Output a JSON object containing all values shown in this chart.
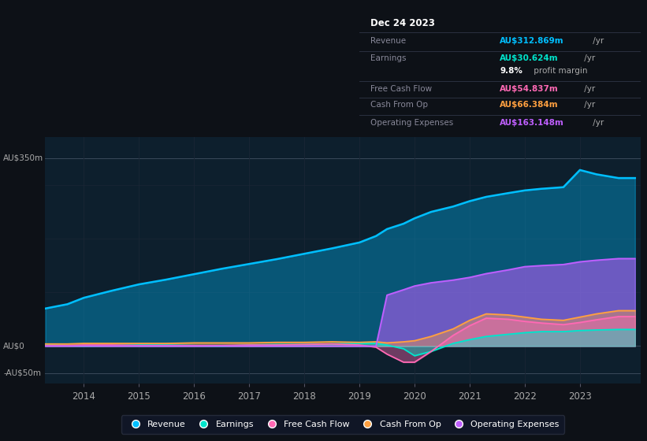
{
  "bg_color": "#0d1117",
  "plot_bg_color": "#0d1f2d",
  "title": "Dec 24 2023",
  "ylabel_top": "AU$350m",
  "ylabel_zero": "AU$0",
  "ylabel_bottom": "-AU$50m",
  "years": [
    2013.3,
    2013.7,
    2014.0,
    2014.5,
    2015.0,
    2015.5,
    2016.0,
    2016.5,
    2017.0,
    2017.5,
    2018.0,
    2018.5,
    2019.0,
    2019.3,
    2019.5,
    2019.8,
    2020.0,
    2020.3,
    2020.7,
    2021.0,
    2021.3,
    2021.7,
    2022.0,
    2022.3,
    2022.7,
    2023.0,
    2023.3,
    2023.7,
    2024.0
  ],
  "revenue": [
    70,
    78,
    90,
    103,
    115,
    124,
    134,
    144,
    153,
    162,
    172,
    182,
    193,
    205,
    218,
    228,
    238,
    250,
    260,
    270,
    278,
    285,
    290,
    293,
    296,
    328,
    320,
    313,
    313
  ],
  "earnings": [
    2,
    1,
    0,
    1,
    2,
    2,
    1,
    0,
    2,
    3,
    3,
    4,
    5,
    5,
    2,
    -5,
    -18,
    -10,
    5,
    12,
    18,
    22,
    25,
    27,
    27,
    29,
    30,
    31,
    31
  ],
  "free_cash_flow": [
    1,
    1,
    2,
    2,
    1,
    1,
    1,
    1,
    2,
    2,
    3,
    4,
    2,
    -2,
    -15,
    -30,
    -30,
    -10,
    20,
    38,
    52,
    50,
    46,
    43,
    40,
    44,
    49,
    55,
    55
  ],
  "cash_from_op": [
    4,
    4,
    5,
    5,
    5,
    5,
    6,
    6,
    6,
    7,
    7,
    8,
    7,
    8,
    6,
    8,
    10,
    18,
    32,
    48,
    60,
    58,
    54,
    50,
    48,
    54,
    60,
    66,
    66
  ],
  "operating_expenses": [
    0,
    0,
    0,
    0,
    0,
    0,
    0,
    0,
    0,
    0,
    0,
    0,
    0,
    0,
    95,
    105,
    112,
    118,
    123,
    128,
    135,
    142,
    148,
    150,
    152,
    157,
    160,
    163,
    163
  ],
  "revenue_color": "#00bfff",
  "earnings_color": "#00e5cc",
  "free_cash_flow_color": "#ff69b4",
  "cash_from_op_color": "#ffa040",
  "operating_expenses_color": "#bf5fff",
  "grid_color": "#1a2535",
  "zero_line_color": "#3a4a5a",
  "info_box": {
    "title": "Dec 24 2023",
    "revenue_label": "Revenue",
    "revenue_value": "AU$312.869m /yr",
    "earnings_label": "Earnings",
    "earnings_value": "AU$30.624m /yr",
    "margin_value": "9.8% profit margin",
    "fcf_label": "Free Cash Flow",
    "fcf_value": "AU$54.837m /yr",
    "cop_label": "Cash From Op",
    "cop_value": "AU$66.384m /yr",
    "opex_label": "Operating Expenses",
    "opex_value": "AU$163.148m /yr"
  },
  "legend_items": [
    {
      "label": "Revenue",
      "color": "#00bfff"
    },
    {
      "label": "Earnings",
      "color": "#00e5cc"
    },
    {
      "label": "Free Cash Flow",
      "color": "#ff69b4"
    },
    {
      "label": "Cash From Op",
      "color": "#ffa040"
    },
    {
      "label": "Operating Expenses",
      "color": "#bf5fff"
    }
  ],
  "xticks": [
    2014,
    2015,
    2016,
    2017,
    2018,
    2019,
    2020,
    2021,
    2022,
    2023
  ],
  "xlim": [
    2013.3,
    2024.1
  ],
  "ylim": [
    -70,
    390
  ]
}
